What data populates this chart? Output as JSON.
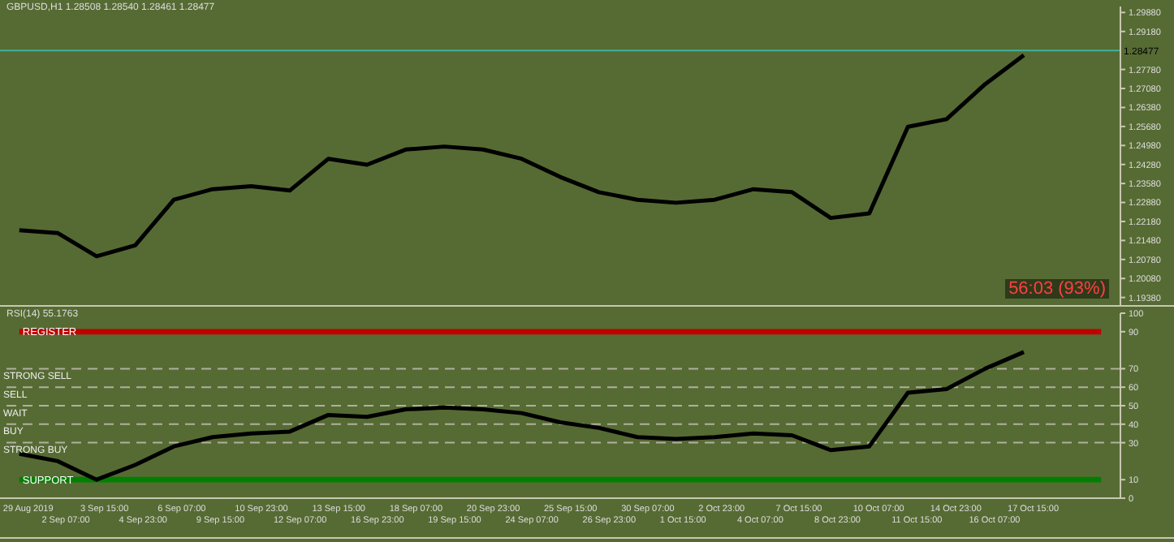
{
  "chart_data": [
    {
      "type": "line",
      "title": "GBPUSD,H1  1.28508 1.28540 1.28461 1.28477",
      "annotations": [
        "56:03 (93%)"
      ],
      "categories": [
        null,
        null,
        null,
        null,
        null,
        null,
        null,
        null,
        null,
        null,
        null,
        null,
        null,
        null,
        null,
        null,
        null,
        null,
        null,
        null,
        null,
        null,
        null,
        null,
        null,
        null,
        null,
        null,
        null
      ],
      "series": [
        {
          "color": "#000000",
          "values": [
            1.2186,
            1.2175,
            1.209,
            1.213,
            1.2298,
            1.2337,
            1.2348,
            1.2332,
            1.2449,
            1.2427,
            1.2483,
            1.2494,
            1.2483,
            1.2449,
            1.2382,
            1.2326,
            1.2298,
            1.2287,
            1.2298,
            1.2337,
            1.2326,
            1.2231,
            1.2248,
            1.2567,
            1.2595,
            1.2724,
            1.2831,
            null,
            null
          ]
        }
      ],
      "ylim": [
        1.191,
        1.301
      ],
      "yticks": [
        {
          "value": 1.1938,
          "label": "1.19380"
        },
        {
          "value": 1.2008,
          "label": "1.20080"
        },
        {
          "value": 1.2078,
          "label": "1.20780"
        },
        {
          "value": 1.2148,
          "label": "1.21480"
        },
        {
          "value": 1.2218,
          "label": "1.22180"
        },
        {
          "value": 1.2288,
          "label": "1.22880"
        },
        {
          "value": 1.2358,
          "label": "1.23580"
        },
        {
          "value": 1.2428,
          "label": "1.24280"
        },
        {
          "value": 1.2498,
          "label": "1.24980"
        },
        {
          "value": 1.2568,
          "label": "1.25680"
        },
        {
          "value": 1.2638,
          "label": "1.26380"
        },
        {
          "value": 1.2708,
          "label": "1.27080"
        },
        {
          "value": 1.2778,
          "label": "1.27780"
        },
        {
          "value": 1.2918,
          "label": "1.29180"
        },
        {
          "value": 1.2988,
          "label": "1.29880"
        }
      ],
      "ref_lines": [
        {
          "axis": "y",
          "value": 1.28477,
          "label": "1.28477",
          "color": "#3cb3a0"
        }
      ],
      "tick_labels": "y",
      "grid": false,
      "legend": false,
      "marker": "none",
      "line_style": "solid"
    },
    {
      "type": "line",
      "title": "RSI(14) 55.1763",
      "categories": [
        "29 Aug 2019",
        "2 Sep 07:00",
        "3 Sep 15:00",
        "4 Sep 23:00",
        "6 Sep 07:00",
        "9 Sep 15:00",
        "10 Sep 23:00",
        "12 Sep 07:00",
        "13 Sep 15:00",
        "16 Sep 23:00",
        "18 Sep 07:00",
        "19 Sep 15:00",
        "20 Sep 23:00",
        "24 Sep 07:00",
        "25 Sep 15:00",
        "26 Sep 23:00",
        "30 Sep 07:00",
        "1 Oct 15:00",
        "2 Oct 23:00",
        "4 Oct 07:00",
        "7 Oct 15:00",
        "8 Oct 23:00",
        "10 Oct 07:00",
        "11 Oct 15:00",
        "14 Oct 23:00",
        "16 Oct 07:00",
        "17 Oct 15:00",
        null,
        null
      ],
      "series": [
        {
          "color": "#000000",
          "values": [
            24,
            20,
            10,
            18,
            28,
            33,
            35,
            36,
            45,
            44,
            48,
            49,
            48,
            46,
            41,
            38,
            33,
            32,
            33,
            35,
            34,
            26,
            28,
            57,
            59,
            70,
            79,
            null,
            null
          ]
        }
      ],
      "ylim": [
        0,
        100
      ],
      "yticks": [
        0,
        10,
        30,
        40,
        50,
        60,
        70,
        90,
        100
      ],
      "ref_lines": [
        {
          "axis": "y",
          "value": 70,
          "label": "STRONG SELL",
          "color": "#b0b0a0",
          "line_style": "dashed"
        },
        {
          "axis": "y",
          "value": 60,
          "label": "SELL",
          "color": "#b0b0a0",
          "line_style": "dashed"
        },
        {
          "axis": "y",
          "value": 50,
          "label": "WAIT",
          "color": "#b0b0a0",
          "line_style": "dashed"
        },
        {
          "axis": "y",
          "value": 40,
          "label": "BUY",
          "color": "#b0b0a0",
          "line_style": "dashed"
        },
        {
          "axis": "y",
          "value": 30,
          "label": "STRONG BUY",
          "color": "#b0b0a0",
          "line_style": "dashed"
        }
      ],
      "bands": [
        {
          "axis": "y",
          "from": 88.5,
          "to": 91.5,
          "label": "REGISTER",
          "color": "#c00000"
        },
        {
          "axis": "y",
          "from": 8.5,
          "to": 11.5,
          "label": "SUPPORT",
          "color": "#008000"
        }
      ],
      "grid": false,
      "legend": false,
      "marker": "none",
      "line_style": "solid"
    }
  ]
}
